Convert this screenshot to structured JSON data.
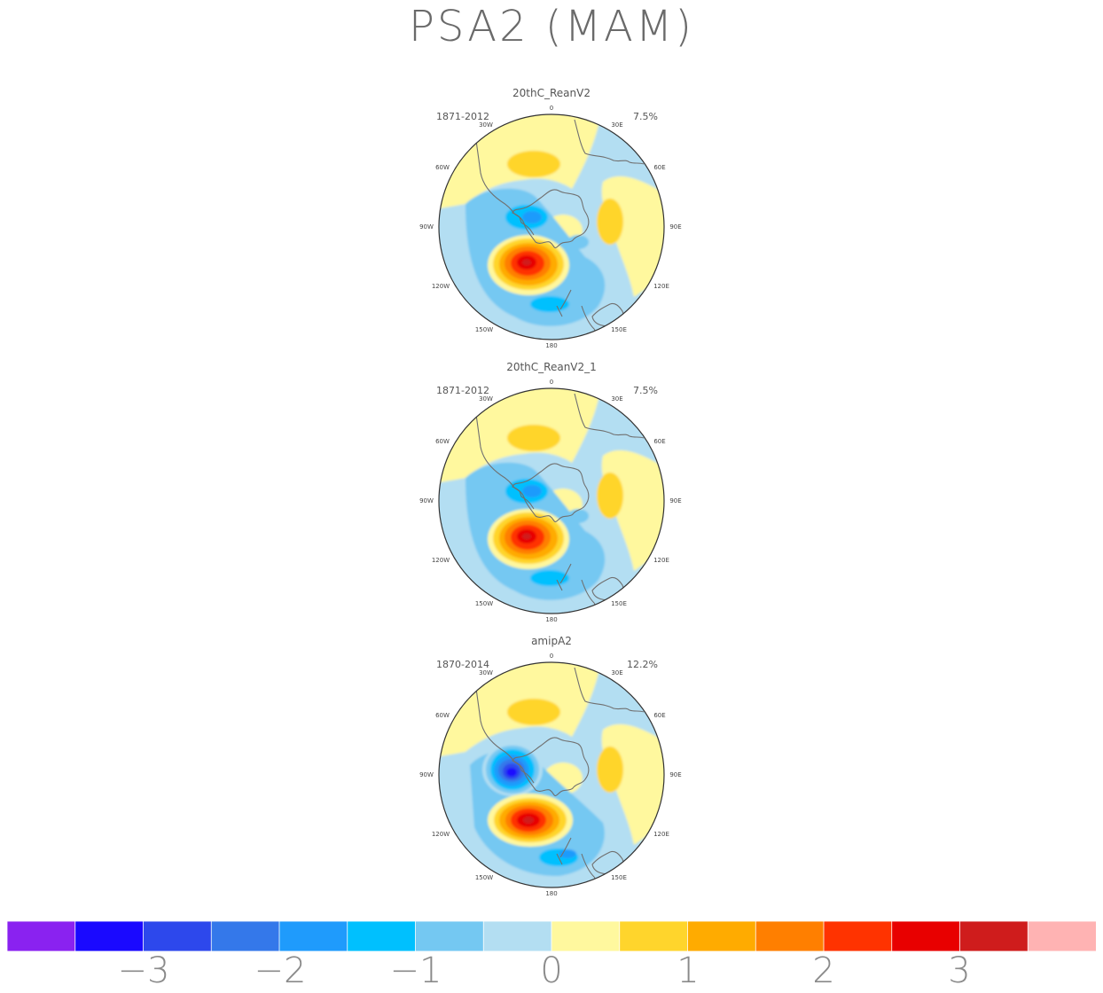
{
  "title": "PSA2 (MAM)",
  "lon_labels": [
    "0",
    "30E",
    "60E",
    "90E",
    "120E",
    "150E",
    "180",
    "150W",
    "120W",
    "90W",
    "60W",
    "30W"
  ],
  "panels": [
    {
      "title": "20thC_ReanV2",
      "period": "1871-2012",
      "variance": "7.5%",
      "variant": "rean"
    },
    {
      "title": "20thC_ReanV2_1",
      "period": "1871-2012",
      "variance": "7.5%",
      "variant": "rean"
    },
    {
      "title": "amipA2",
      "period": "1870-2014",
      "variance": "12.2%",
      "variant": "amip"
    }
  ],
  "colorbar": {
    "colors": [
      "#8a22f0",
      "#1a09ff",
      "#2d48ec",
      "#3478ea",
      "#1f9bfc",
      "#00c0fe",
      "#74c8f2",
      "#b3def2",
      "#fff89e",
      "#ffd52c",
      "#ffab00",
      "#ff7f00",
      "#ff3300",
      "#e80000",
      "#cf1c1c",
      "#ffb3b3"
    ],
    "tick_labels": [
      "−3",
      "−2",
      "−1",
      "0",
      "1",
      "2",
      "3"
    ]
  }
}
